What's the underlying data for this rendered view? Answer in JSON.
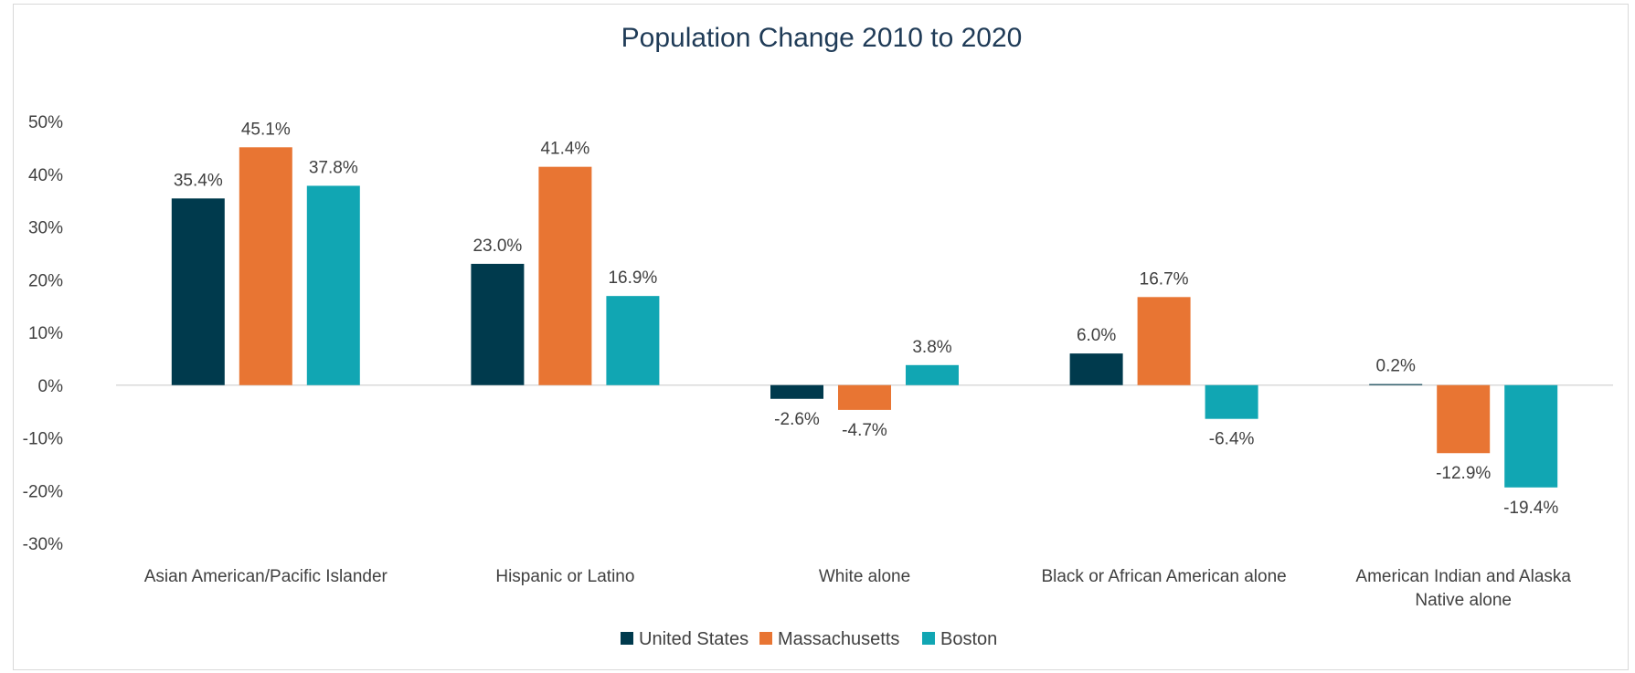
{
  "chart_data": {
    "type": "bar",
    "title": "Population Change 2010 to 2020",
    "xlabel": "",
    "ylabel": "",
    "ylim": [
      -30,
      50
    ],
    "yticks": [
      "50%",
      "40%",
      "30%",
      "20%",
      "10%",
      "0%",
      "-10%",
      "-20%",
      "-30%"
    ],
    "ytick_values": [
      50,
      40,
      30,
      20,
      10,
      0,
      -10,
      -20,
      -30
    ],
    "grid": false,
    "legend_position": "bottom",
    "categories": [
      [
        "Asian American/Pacific Islander"
      ],
      [
        "Hispanic or Latino"
      ],
      [
        "White alone"
      ],
      [
        "Black or African American alone"
      ],
      [
        "American Indian and Alaska",
        "Native alone"
      ]
    ],
    "series": [
      {
        "name": "United States",
        "color": "#003a4d",
        "values": [
          35.4,
          23.0,
          -2.6,
          6.0,
          0.2
        ],
        "labels": [
          "35.4%",
          "23.0%",
          "-2.6%",
          "6.0%",
          "0.2%"
        ]
      },
      {
        "name": "Massachusetts",
        "color": "#e87533",
        "values": [
          45.1,
          41.4,
          -4.7,
          16.7,
          -12.9
        ],
        "labels": [
          "45.1%",
          "41.4%",
          "-4.7%",
          "16.7%",
          "-12.9%"
        ]
      },
      {
        "name": "Boston",
        "color": "#11a6b3",
        "values": [
          37.8,
          16.9,
          3.8,
          -6.4,
          -19.4
        ],
        "labels": [
          "37.8%",
          "16.9%",
          "3.8%",
          "-6.4%",
          "-19.4%"
        ]
      }
    ]
  }
}
